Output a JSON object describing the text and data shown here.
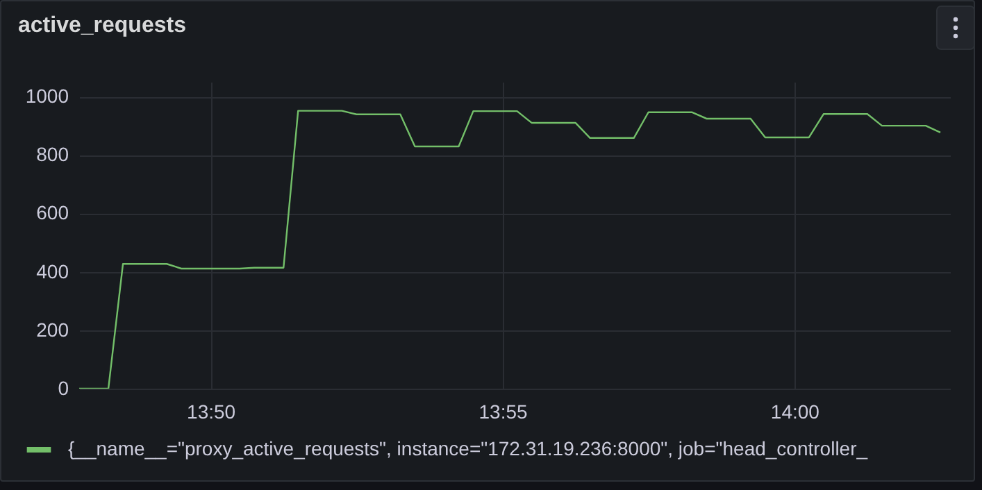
{
  "chart_data": {
    "type": "line",
    "title": "active_requests",
    "x": [
      13.79583,
      13.80417,
      13.80833,
      13.82083,
      13.825,
      13.84167,
      13.84583,
      13.85417,
      13.85833,
      13.87083,
      13.875,
      13.8875,
      13.89167,
      13.90417,
      13.90833,
      13.92083,
      13.925,
      13.9375,
      13.94167,
      13.95417,
      13.95833,
      13.97083,
      13.975,
      13.9875,
      13.99167,
      14.00417,
      14.00833,
      14.02083,
      14.025,
      14.0375,
      14.04167
    ],
    "series": [
      {
        "name": "{__name__=\"proxy_active_requests\", instance=\"172.31.19.236:8000\", job=\"head_controller_",
        "color": "#73bf69",
        "values": [
          0,
          0,
          427,
          427,
          411,
          411,
          414,
          414,
          951,
          951,
          939,
          939,
          829,
          829,
          950,
          950,
          910,
          910,
          858,
          858,
          946,
          946,
          924,
          924,
          860,
          860,
          940,
          940,
          900,
          900,
          877
        ]
      }
    ],
    "xlim": [
      13.79583,
      14.04444
    ],
    "xticks": [
      {
        "value": 13.83333,
        "label": "13:50"
      },
      {
        "value": 13.91667,
        "label": "13:55"
      },
      {
        "value": 14,
        "label": "14:00"
      }
    ],
    "ylim": [
      0,
      1050
    ],
    "yticks": [
      0,
      200,
      400,
      600,
      800,
      1000
    ],
    "grid": true,
    "legend": "bottom",
    "marker": "none",
    "line_style": "solid"
  }
}
